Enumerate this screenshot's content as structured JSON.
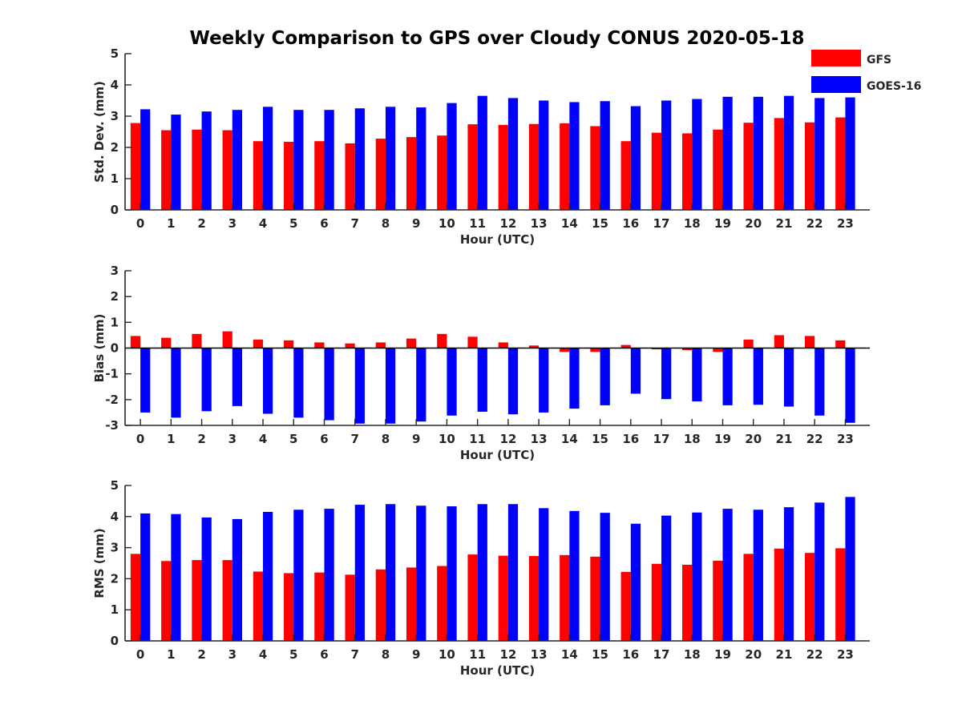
{
  "chart_data": {
    "title": "Weekly Comparison to GPS over Cloudy CONUS 2020-05-18",
    "type": "bar",
    "legend": {
      "placement": "top-right",
      "entries": [
        {
          "name": "GFS",
          "color": "#ff0000"
        },
        {
          "name": "GOES-16",
          "color": "#0000ff"
        }
      ]
    },
    "panels": [
      {
        "id": "stddev",
        "ylabel": "Std. Dev. (mm)",
        "xlabel": "Hour (UTC)",
        "ylim": [
          0,
          5
        ],
        "yticks": [
          0,
          1,
          2,
          3,
          4,
          5
        ],
        "categories": [
          "0",
          "1",
          "2",
          "3",
          "4",
          "5",
          "6",
          "7",
          "8",
          "9",
          "10",
          "11",
          "12",
          "13",
          "14",
          "15",
          "16",
          "17",
          "18",
          "19",
          "20",
          "21",
          "22",
          "23"
        ],
        "series": [
          {
            "name": "GFS",
            "color": "#ff0000",
            "values": [
              2.78,
              2.55,
              2.57,
              2.55,
              2.2,
              2.18,
              2.2,
              2.13,
              2.28,
              2.33,
              2.38,
              2.74,
              2.72,
              2.75,
              2.77,
              2.68,
              2.2,
              2.47,
              2.45,
              2.57,
              2.79,
              2.94,
              2.8,
              2.96
            ]
          },
          {
            "name": "GOES-16",
            "color": "#0000ff",
            "values": [
              3.22,
              3.05,
              3.15,
              3.2,
              3.3,
              3.2,
              3.2,
              3.25,
              3.3,
              3.28,
              3.42,
              3.65,
              3.58,
              3.5,
              3.45,
              3.48,
              3.32,
              3.5,
              3.55,
              3.62,
              3.62,
              3.65,
              3.58,
              3.6
            ]
          }
        ]
      },
      {
        "id": "bias",
        "ylabel": "Bias (mm)",
        "xlabel": "Hour (UTC)",
        "ylim": [
          -3,
          3
        ],
        "yticks": [
          -3,
          -2,
          -1,
          0,
          1,
          2,
          3
        ],
        "categories": [
          "0",
          "1",
          "2",
          "3",
          "4",
          "5",
          "6",
          "7",
          "8",
          "9",
          "10",
          "11",
          "12",
          "13",
          "14",
          "15",
          "16",
          "17",
          "18",
          "19",
          "20",
          "21",
          "22",
          "23"
        ],
        "series": [
          {
            "name": "GFS",
            "color": "#ff0000",
            "values": [
              0.47,
              0.4,
              0.55,
              0.65,
              0.33,
              0.3,
              0.22,
              0.18,
              0.22,
              0.37,
              0.55,
              0.44,
              0.22,
              0.1,
              -0.15,
              -0.15,
              0.12,
              -0.05,
              -0.08,
              -0.15,
              0.33,
              0.5,
              0.47,
              0.3
            ]
          },
          {
            "name": "GOES-16",
            "color": "#0000ff",
            "values": [
              -2.5,
              -2.7,
              -2.45,
              -2.25,
              -2.55,
              -2.7,
              -2.8,
              -2.93,
              -2.93,
              -2.85,
              -2.62,
              -2.47,
              -2.57,
              -2.5,
              -2.35,
              -2.22,
              -1.77,
              -1.98,
              -2.07,
              -2.22,
              -2.2,
              -2.27,
              -2.62,
              -2.9
            ]
          }
        ]
      },
      {
        "id": "rms",
        "ylabel": "RMS (mm)",
        "xlabel": "Hour (UTC)",
        "ylim": [
          0,
          5
        ],
        "yticks": [
          0,
          1,
          2,
          3,
          4,
          5
        ],
        "categories": [
          "0",
          "1",
          "2",
          "3",
          "4",
          "5",
          "6",
          "7",
          "8",
          "9",
          "10",
          "11",
          "12",
          "13",
          "14",
          "15",
          "16",
          "17",
          "18",
          "19",
          "20",
          "21",
          "22",
          "23"
        ],
        "series": [
          {
            "name": "GFS",
            "color": "#ff0000",
            "values": [
              2.8,
              2.57,
              2.6,
              2.6,
              2.23,
              2.18,
              2.2,
              2.13,
              2.3,
              2.36,
              2.41,
              2.78,
              2.74,
              2.73,
              2.76,
              2.71,
              2.22,
              2.48,
              2.45,
              2.58,
              2.8,
              2.97,
              2.83,
              2.98
            ]
          },
          {
            "name": "GOES-16",
            "color": "#0000ff",
            "values": [
              4.1,
              4.08,
              3.97,
              3.92,
              4.15,
              4.22,
              4.25,
              4.38,
              4.4,
              4.35,
              4.33,
              4.4,
              4.4,
              4.27,
              4.18,
              4.12,
              3.77,
              4.03,
              4.13,
              4.25,
              4.22,
              4.3,
              4.45,
              4.63
            ]
          }
        ]
      }
    ]
  }
}
